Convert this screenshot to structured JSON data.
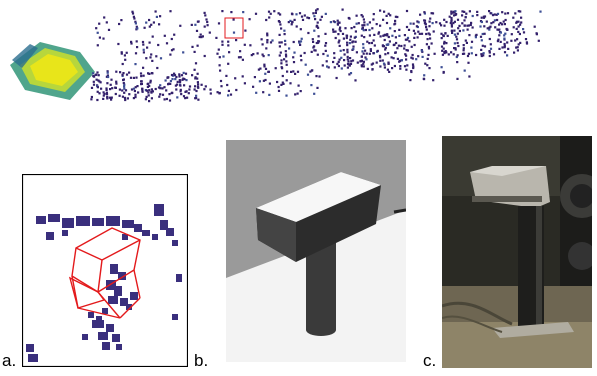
{
  "figure": {
    "panels": [
      {
        "label": "a."
      },
      {
        "label": "b."
      },
      {
        "label": "c."
      }
    ]
  },
  "colors": {
    "cloud_dark": "#2e1a63",
    "cloud_mid": "#3b3a8c",
    "cloud_teal": "#21908c",
    "cloud_yellow": "#e8e51a",
    "box_red": "#e31a1c",
    "render_bg": "#9a9a9a",
    "render_floor": "#f3f3f3",
    "render_object": "#3a3a3a",
    "photo_bg": "#2a2a24"
  }
}
